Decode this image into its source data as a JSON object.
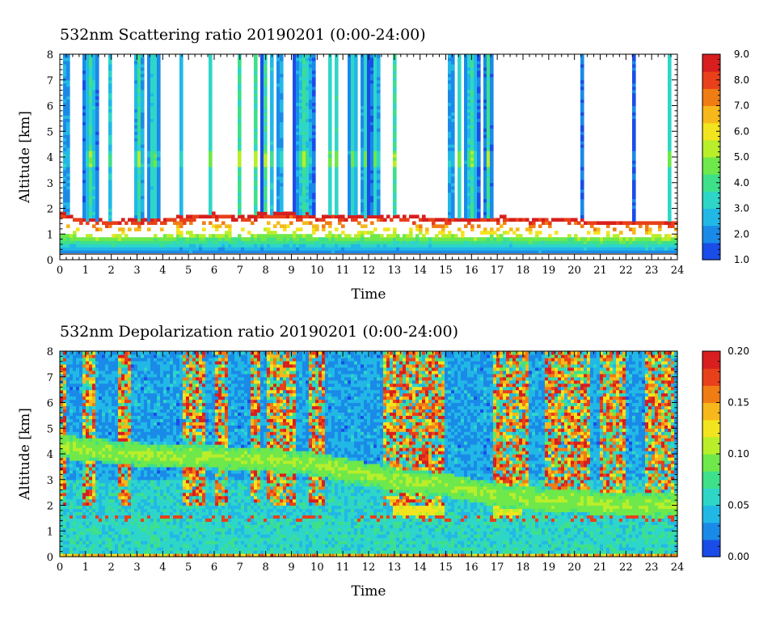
{
  "chart_data": [
    {
      "type": "heatmap",
      "title": "532nm Scattering ratio  20190201 (0:00-24:00)",
      "xlabel": "Time",
      "ylabel": "Altitude [km]",
      "x_ticks": [
        "0",
        "1",
        "2",
        "3",
        "4",
        "5",
        "6",
        "7",
        "8",
        "9",
        "10",
        "11",
        "12",
        "13",
        "14",
        "15",
        "16",
        "17",
        "18",
        "19",
        "20",
        "21",
        "22",
        "23",
        "24"
      ],
      "y_ticks": [
        "0",
        "1",
        "2",
        "3",
        "4",
        "5",
        "6",
        "7",
        "8"
      ],
      "xlim": [
        0,
        24
      ],
      "ylim": [
        0,
        8
      ],
      "colorbar": {
        "ticks": [
          "1.0",
          "2.0",
          "3.0",
          "4.0",
          "5.0",
          "6.0",
          "7.0",
          "8.0",
          "9.0"
        ],
        "range": [
          1.0,
          9.0
        ]
      },
      "features": {
        "boundary_layer_top_km": [
          1.9,
          1.6,
          1.5,
          1.6,
          1.6,
          1.7,
          1.8,
          1.7,
          1.8,
          1.9,
          1.7,
          1.7,
          1.7,
          1.7,
          1.7,
          1.6,
          1.6,
          1.7,
          1.6,
          1.6,
          1.6,
          1.5,
          1.5,
          1.5,
          1.5
        ],
        "saturated_layer_km": [
          0.9,
          1.6
        ],
        "cloud_columns_hours": [
          [
            0.15,
            0.35
          ],
          [
            0.9,
            1.5
          ],
          [
            1.9,
            2.05
          ],
          [
            2.85,
            3.3
          ],
          [
            3.4,
            3.9
          ],
          [
            4.6,
            4.75
          ],
          [
            5.8,
            5.9
          ],
          [
            6.9,
            7.05
          ],
          [
            7.5,
            7.7
          ],
          [
            7.85,
            8.1
          ],
          [
            8.2,
            8.3
          ],
          [
            8.45,
            8.65
          ],
          [
            9.1,
            9.9
          ],
          [
            10.4,
            10.55
          ],
          [
            10.7,
            10.8
          ],
          [
            11.2,
            11.6
          ],
          [
            11.7,
            12.0
          ],
          [
            12.1,
            12.45
          ],
          [
            12.9,
            13.1
          ],
          [
            15.1,
            15.3
          ],
          [
            15.4,
            15.6
          ],
          [
            15.7,
            16.3
          ],
          [
            16.5,
            16.8
          ],
          [
            20.2,
            20.3
          ],
          [
            22.3,
            22.4
          ],
          [
            23.6,
            23.75
          ]
        ],
        "cloud_core_km": [
          3.6,
          4.2
        ]
      }
    },
    {
      "type": "heatmap",
      "title": "532nm Depolarization ratio  20190201 (0:00-24:00)",
      "xlabel": "Time",
      "ylabel": "Altitude [km]",
      "x_ticks": [
        "0",
        "1",
        "2",
        "3",
        "4",
        "5",
        "6",
        "7",
        "8",
        "9",
        "10",
        "11",
        "12",
        "13",
        "14",
        "15",
        "16",
        "17",
        "18",
        "19",
        "20",
        "21",
        "22",
        "23",
        "24"
      ],
      "y_ticks": [
        "0",
        "1",
        "2",
        "3",
        "4",
        "5",
        "6",
        "7",
        "8"
      ],
      "xlim": [
        0,
        24
      ],
      "ylim": [
        0,
        8
      ],
      "colorbar": {
        "ticks": [
          "0.00",
          "0.05",
          "0.10",
          "0.15",
          "0.20"
        ],
        "range": [
          0.0,
          0.2
        ]
      },
      "features": {
        "dust_layer_altitude_km": [
          4.3,
          4.2,
          4.1,
          4.0,
          3.9,
          3.9,
          3.9,
          3.8,
          3.8,
          3.7,
          3.6,
          3.4,
          3.2,
          3.0,
          2.9,
          2.8,
          2.6,
          2.4,
          2.3,
          2.2,
          2.2,
          2.1,
          2.0,
          2.0,
          2.0
        ],
        "boundary_layer_top_km": 1.6,
        "noisy_columns_hours": [
          [
            0.0,
            0.3
          ],
          [
            0.9,
            1.4
          ],
          [
            2.3,
            2.8
          ],
          [
            4.8,
            5.6
          ],
          [
            6.0,
            6.5
          ],
          [
            7.4,
            7.8
          ],
          [
            8.1,
            9.2
          ],
          [
            9.7,
            10.3
          ],
          [
            12.6,
            13.0
          ],
          [
            13.0,
            14.9
          ],
          [
            16.8,
            18.2
          ],
          [
            18.8,
            20.6
          ],
          [
            21.0,
            22.0
          ],
          [
            22.8,
            23.9
          ]
        ]
      }
    }
  ],
  "colorscales": {
    "scattering": [
      "#1a4de8",
      "#1a8ae8",
      "#22b8e6",
      "#2ed6c8",
      "#3ee08a",
      "#6ee84a",
      "#b8ee2a",
      "#f2e41e",
      "#f6b81a",
      "#f07c14",
      "#e8401a",
      "#d81e1e"
    ],
    "depolarization": [
      "#1a4de8",
      "#1a8ae8",
      "#22b8e6",
      "#2ed6c8",
      "#3ee08a",
      "#6ee84a",
      "#b8ee2a",
      "#f2e41e",
      "#f6b81a",
      "#f07c14",
      "#e8401a",
      "#d81e1e"
    ]
  }
}
